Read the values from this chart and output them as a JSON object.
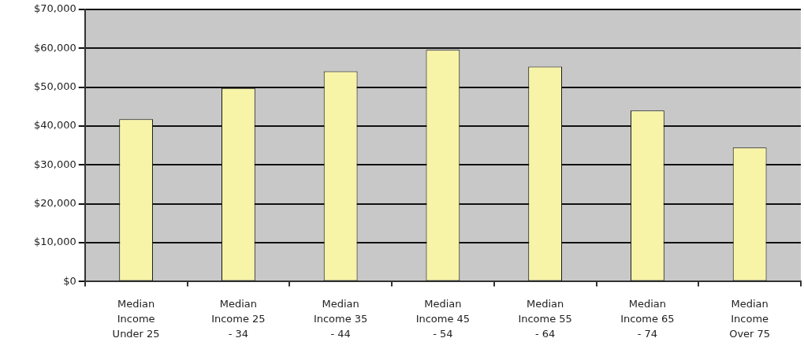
{
  "chart_data": {
    "type": "bar",
    "categories": [
      "Median Income Under 25",
      "Median Income 25 - 34",
      "Median Income 35 - 44",
      "Median Income 45 - 54",
      "Median Income 55 - 64",
      "Median Income 65 - 74",
      "Median Income Over 75"
    ],
    "values": [
      41800,
      49800,
      54100,
      59600,
      55300,
      44000,
      34500
    ],
    "color": "#f7f4a8",
    "ylim": [
      0,
      70000
    ],
    "yticks": [
      {
        "value": 0,
        "label": "$0"
      },
      {
        "value": 10000,
        "label": "$10,000"
      },
      {
        "value": 20000,
        "label": "$20,000"
      },
      {
        "value": 30000,
        "label": "$30,000"
      },
      {
        "value": 40000,
        "label": "$40,000"
      },
      {
        "value": 50000,
        "label": "$50,000"
      },
      {
        "value": 60000,
        "label": "$60,000"
      },
      {
        "value": 70000,
        "label": "$70,000"
      }
    ],
    "grid": "y",
    "legend": false
  }
}
